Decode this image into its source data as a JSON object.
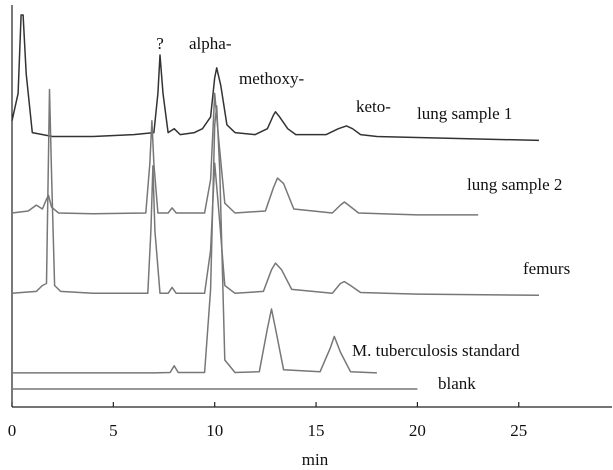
{
  "chart_data": {
    "type": "line",
    "xlabel": "min",
    "xlim": [
      0,
      29.6
    ],
    "xticks": [
      0,
      5,
      10,
      15,
      20,
      25
    ],
    "ylim": [
      0,
      100
    ],
    "annotations": [
      "?",
      "alpha-",
      "methoxy-",
      "keto-"
    ],
    "series": [
      {
        "name": "lung sample 1",
        "color": "#333333",
        "x": [
          0,
          0.3,
          0.45,
          0.55,
          0.7,
          1.0,
          2,
          4,
          6,
          7.0,
          7.2,
          7.3,
          7.45,
          7.7,
          8.0,
          8.3,
          9.0,
          9.4,
          9.8,
          10.0,
          10.1,
          10.3,
          10.6,
          11,
          12,
          12.6,
          12.9,
          13.0,
          13.2,
          13.6,
          14,
          15.5,
          16.1,
          16.5,
          16.8,
          17.2,
          18,
          22,
          26
        ],
        "values": [
          73,
          80,
          100,
          100,
          85,
          70,
          69,
          69,
          69.5,
          70,
          80,
          89.8,
          80,
          70,
          71,
          69.5,
          70,
          71,
          74,
          84,
          86.5,
          82,
          72,
          70,
          69.5,
          71,
          74.5,
          75.3,
          74,
          71,
          69.5,
          69.5,
          71,
          71.7,
          71,
          69.5,
          69,
          68.5,
          68
        ]
      },
      {
        "name": "lung sample 2",
        "color": "#777777",
        "x": [
          0,
          0.8,
          1.2,
          1.5,
          1.7,
          1.8,
          1.95,
          2.3,
          4,
          6.6,
          6.8,
          6.9,
          7.0,
          7.2,
          7.7,
          7.9,
          8.1,
          9.5,
          9.8,
          10.0,
          10.2,
          10.5,
          11,
          12.5,
          12.9,
          13.1,
          13.4,
          13.9,
          15.8,
          16.2,
          16.4,
          16.6,
          17.1,
          20,
          23
        ],
        "values": [
          49.5,
          50,
          51.5,
          50.5,
          53,
          54,
          51,
          49.5,
          49.3,
          49.5,
          62,
          73,
          62,
          49.5,
          49.5,
          50.8,
          49.5,
          49.5,
          58,
          80,
          68,
          52,
          49.5,
          50,
          56,
          58.4,
          57,
          50.5,
          49.5,
          51.5,
          52.3,
          51.5,
          49.5,
          49,
          49
        ]
      },
      {
        "name": "femurs",
        "color": "#777777",
        "x": [
          0,
          1.2,
          1.5,
          1.7,
          1.85,
          1.95,
          2.1,
          2.4,
          4,
          6.7,
          6.85,
          6.95,
          7.05,
          7.3,
          7.7,
          7.9,
          8.1,
          9.5,
          9.8,
          10.0,
          10.2,
          10.5,
          11,
          12.4,
          12.8,
          13.0,
          13.3,
          13.8,
          15.8,
          16.2,
          16.4,
          16.7,
          17.2,
          20,
          26
        ],
        "values": [
          29,
          29.5,
          31,
          31.5,
          81,
          60,
          31,
          29.5,
          29,
          29,
          45,
          61.5,
          45,
          29,
          29,
          30.5,
          29,
          29,
          40,
          62.2,
          50,
          31,
          29,
          29.5,
          35,
          36.7,
          35,
          30,
          29,
          31.5,
          32,
          31,
          29.2,
          28.8,
          28.5
        ]
      },
      {
        "name": "M. tuberculosis standard",
        "color": "#777777",
        "x": [
          0,
          7,
          7.8,
          8.0,
          8.2,
          9.5,
          9.8,
          10.0,
          10.1,
          10.25,
          10.5,
          11,
          12.2,
          12.6,
          12.8,
          13.0,
          13.4,
          15.2,
          15.7,
          15.9,
          16.2,
          16.7,
          18
        ],
        "values": [
          8.7,
          8.7,
          8.8,
          10.5,
          8.8,
          8.8,
          30,
          72,
          76.8,
          60,
          12,
          8.8,
          9,
          20,
          25,
          20,
          9.5,
          9,
          15,
          18,
          14,
          9,
          8.7
        ]
      },
      {
        "name": "blank",
        "color": "#777777",
        "x": [
          0,
          20
        ],
        "values": [
          4.6,
          4.6
        ]
      }
    ]
  }
}
